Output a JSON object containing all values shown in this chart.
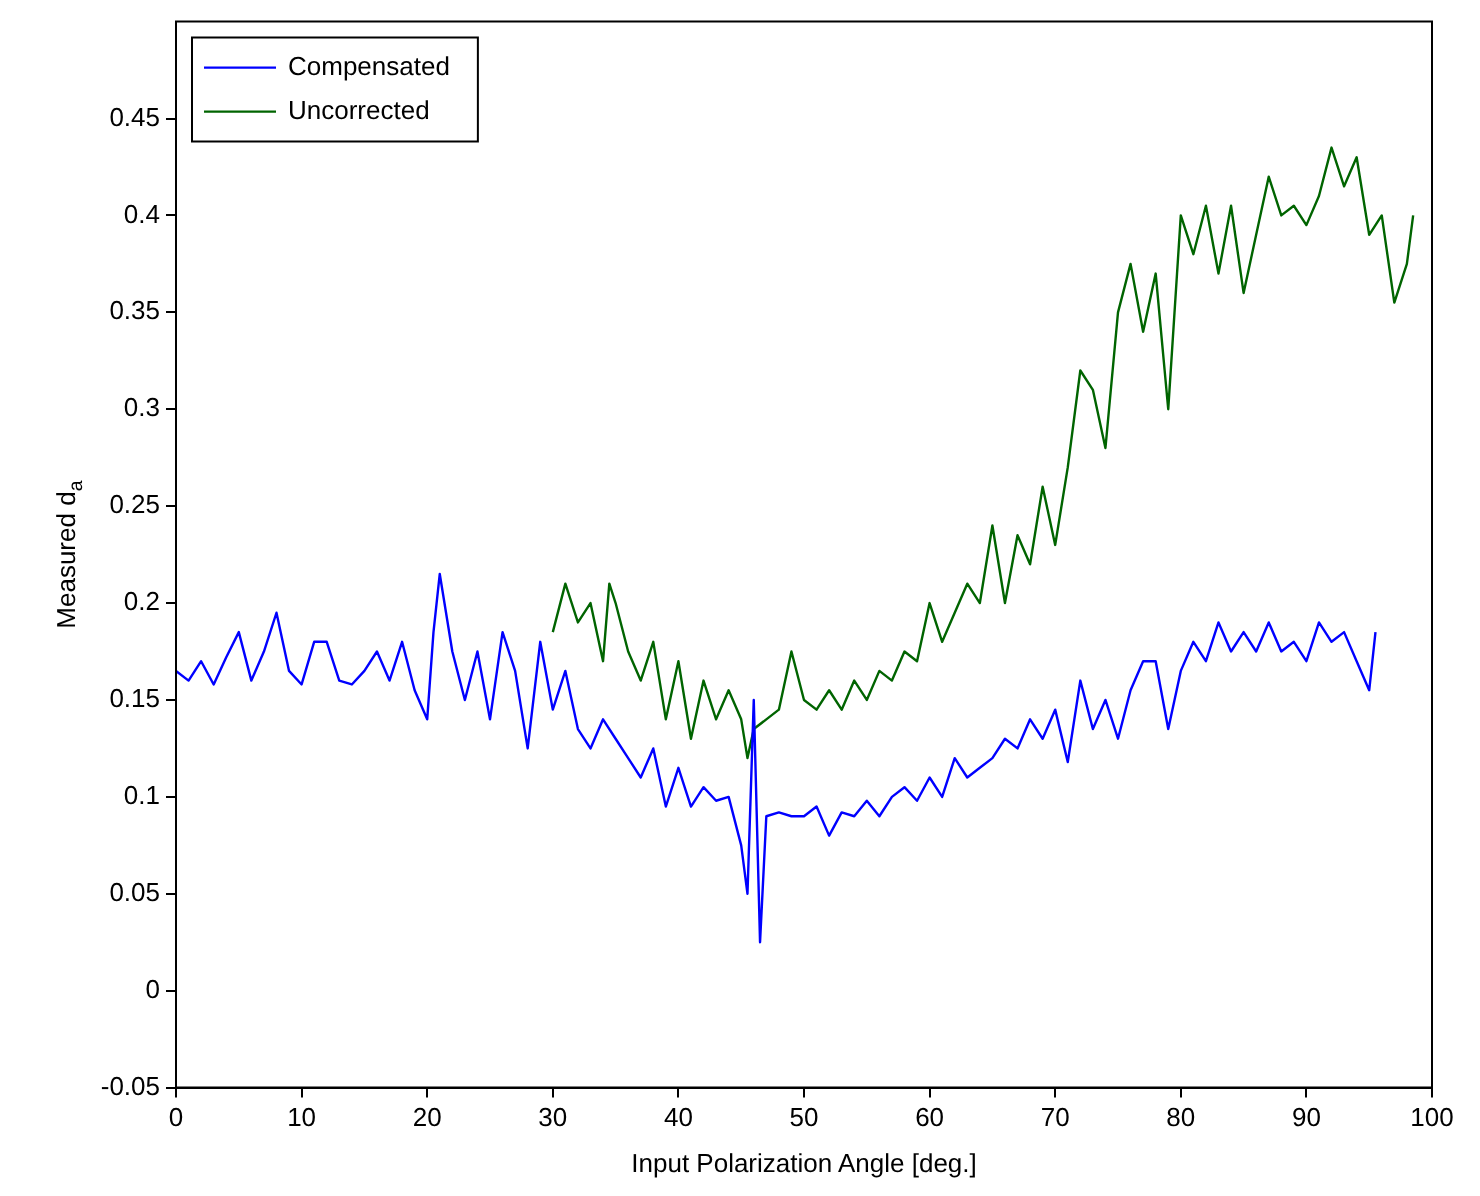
{
  "chart_data": {
    "type": "line",
    "xlabel": "Input Polarization Angle [deg.]",
    "ylabel": "Measured d$_{a}$",
    "xlim": [
      0,
      100
    ],
    "xticks": [
      0,
      10,
      20,
      30,
      40,
      50,
      60,
      70,
      80,
      90,
      100
    ],
    "ylim": [
      -0.05,
      0.5
    ],
    "yticks": [
      -0.05,
      0,
      0.05,
      0.1,
      0.15,
      0.2,
      0.25,
      0.3,
      0.35,
      0.4,
      0.45
    ],
    "grid": false,
    "legend": "top left",
    "marker": "none",
    "line_style": "solid",
    "series": [
      {
        "name": "Compensated",
        "color": "#0000ff",
        "x": [
          0,
          1,
          2,
          3,
          4,
          5,
          6,
          7,
          8,
          9,
          10,
          11,
          12,
          13,
          14,
          15,
          16,
          17,
          18,
          19,
          20,
          20.5,
          21,
          22,
          23,
          24,
          25,
          26,
          27,
          28,
          29,
          30,
          31,
          32,
          33,
          34,
          35,
          36,
          37,
          38,
          39,
          40,
          41,
          42,
          43,
          44,
          45,
          45.5,
          46,
          46.5,
          47,
          48,
          49,
          50,
          51,
          52,
          53,
          54,
          55,
          56,
          57,
          58,
          59,
          60,
          61,
          62,
          63,
          64,
          65,
          66,
          67,
          68,
          69,
          70,
          71,
          72,
          73,
          74,
          75,
          76,
          77,
          78,
          79,
          80,
          81,
          82,
          83,
          84,
          85,
          86,
          87,
          88,
          89,
          90,
          91,
          92,
          93,
          94,
          95,
          95.5
        ],
        "values": [
          0.165,
          0.16,
          0.17,
          0.158,
          0.172,
          0.185,
          0.16,
          0.175,
          0.195,
          0.165,
          0.158,
          0.18,
          0.18,
          0.16,
          0.158,
          0.165,
          0.175,
          0.16,
          0.18,
          0.155,
          0.14,
          0.185,
          0.215,
          0.175,
          0.15,
          0.175,
          0.14,
          0.185,
          0.165,
          0.125,
          0.18,
          0.145,
          0.165,
          0.135,
          0.125,
          0.14,
          0.13,
          0.12,
          0.11,
          0.125,
          0.095,
          0.115,
          0.095,
          0.105,
          0.098,
          0.1,
          0.075,
          0.05,
          0.15,
          0.025,
          0.09,
          0.092,
          0.09,
          0.09,
          0.095,
          0.08,
          0.092,
          0.09,
          0.098,
          0.09,
          0.1,
          0.105,
          0.098,
          0.11,
          0.1,
          0.12,
          0.11,
          0.115,
          0.12,
          0.13,
          0.125,
          0.14,
          0.13,
          0.145,
          0.118,
          0.16,
          0.135,
          0.15,
          0.13,
          0.155,
          0.17,
          0.17,
          0.135,
          0.165,
          0.18,
          0.17,
          0.19,
          0.175,
          0.185,
          0.175,
          0.19,
          0.175,
          0.18,
          0.17,
          0.19,
          0.18,
          0.185,
          0.17,
          0.155,
          0.185
        ]
      },
      {
        "name": "Uncorrected",
        "color": "#006400",
        "x": [
          30,
          31,
          32,
          33,
          34,
          34.5,
          35,
          36,
          37,
          38,
          39,
          40,
          41,
          42,
          43,
          44,
          45,
          45.5,
          46,
          47,
          48,
          49,
          50,
          51,
          52,
          53,
          54,
          55,
          56,
          57,
          58,
          59,
          60,
          61,
          62,
          63,
          64,
          65,
          66,
          67,
          68,
          69,
          70,
          71,
          72,
          73,
          74,
          75,
          76,
          77,
          78,
          79,
          80,
          81,
          82,
          83,
          84,
          85,
          86,
          87,
          88,
          89,
          90,
          91,
          92,
          93,
          94,
          95,
          96,
          97,
          98,
          98.5
        ],
        "values": [
          0.185,
          0.21,
          0.19,
          0.2,
          0.17,
          0.21,
          0.2,
          0.175,
          0.16,
          0.18,
          0.14,
          0.17,
          0.13,
          0.16,
          0.14,
          0.155,
          0.14,
          0.12,
          0.135,
          0.14,
          0.145,
          0.175,
          0.15,
          0.145,
          0.155,
          0.145,
          0.16,
          0.15,
          0.165,
          0.16,
          0.175,
          0.17,
          0.2,
          0.18,
          0.195,
          0.21,
          0.2,
          0.24,
          0.2,
          0.235,
          0.22,
          0.26,
          0.23,
          0.27,
          0.32,
          0.31,
          0.28,
          0.35,
          0.375,
          0.34,
          0.37,
          0.3,
          0.4,
          0.38,
          0.405,
          0.37,
          0.405,
          0.36,
          0.39,
          0.42,
          0.4,
          0.405,
          0.395,
          0.41,
          0.435,
          0.415,
          0.43,
          0.39,
          0.4,
          0.355,
          0.375,
          0.4
        ]
      }
    ]
  }
}
